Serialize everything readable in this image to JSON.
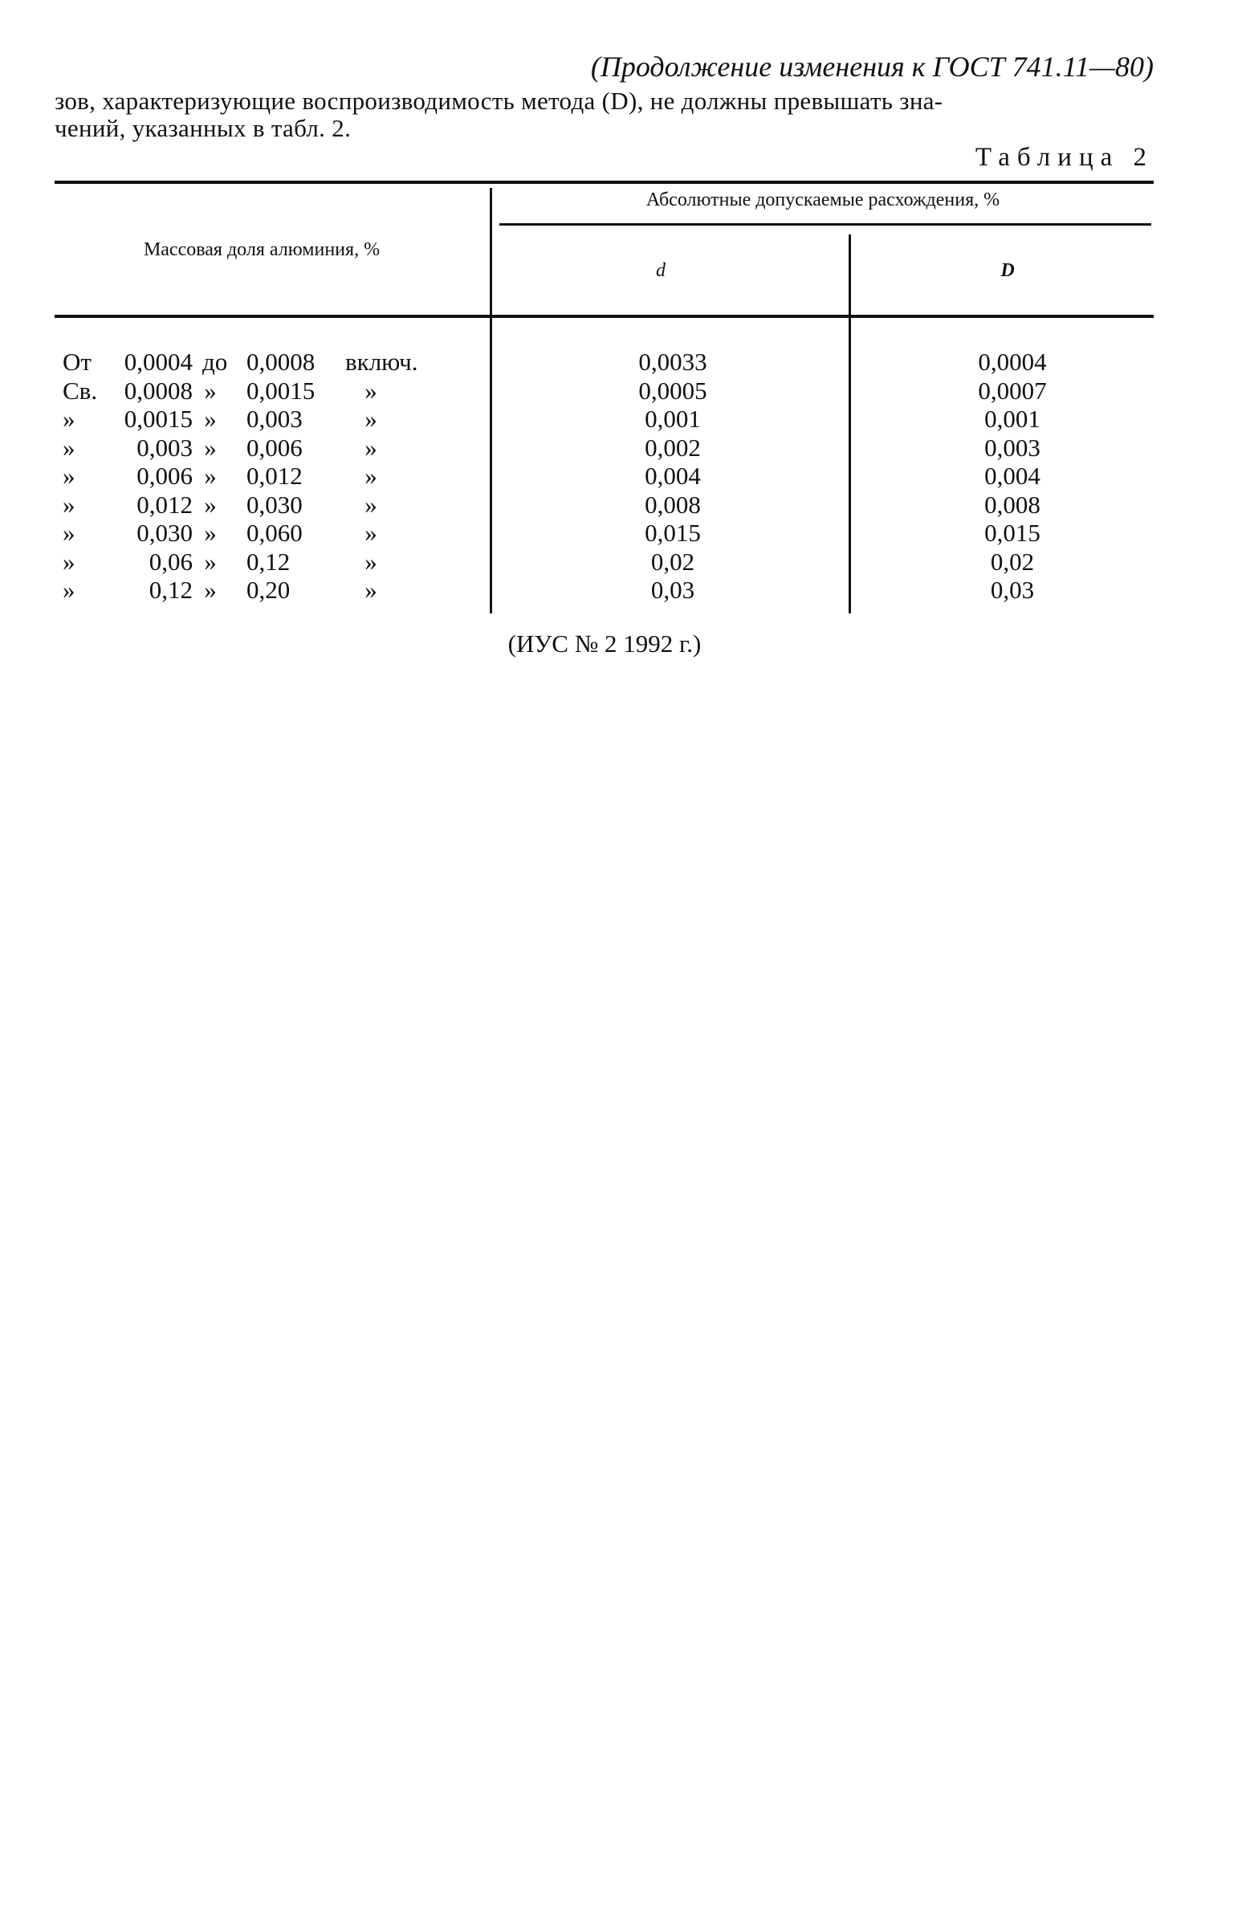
{
  "header": "(Продолжение изменения к ГОСТ 741.11—80)",
  "paragraph": [
    "зов, характеризующие воспроизводимость метода (D), не должны превышать зна-",
    "чений, указанных в табл. 2."
  ],
  "table_label": "Таблица 2",
  "table": {
    "col1_header": "Массовая доля алюминия, %",
    "group_header": "Абсолютные допускаемые расхождения, %",
    "col2_header": "d",
    "col3_header": "D",
    "rows": [
      {
        "prefix": "От",
        "from": "0,0004",
        "sep": "до",
        "to": "0,0008",
        "suffix": "включ.",
        "d": "0,0033",
        "D": "0,0004"
      },
      {
        "prefix": "Св.",
        "from": "0,0008",
        "sep": "»",
        "to": "0,0015",
        "suffix": "»",
        "d": "0,0005",
        "D": "0,0007"
      },
      {
        "prefix": "»",
        "from": "0,0015",
        "sep": "»",
        "to": "0,003",
        "suffix": "»",
        "d": "0,001",
        "D": "0,001"
      },
      {
        "prefix": "»",
        "from": "0,003",
        "sep": "»",
        "to": "0,006",
        "suffix": "»",
        "d": "0,002",
        "D": "0,003"
      },
      {
        "prefix": "»",
        "from": "0,006",
        "sep": "»",
        "to": "0,012",
        "suffix": "»",
        "d": "0,004",
        "D": "0,004"
      },
      {
        "prefix": "»",
        "from": "0,012",
        "sep": "»",
        "to": "0,030",
        "suffix": "»",
        "d": "0,008",
        "D": "0,008"
      },
      {
        "prefix": "»",
        "from": "0,030",
        "sep": "»",
        "to": "0,060",
        "suffix": "»",
        "d": "0,015",
        "D": "0,015"
      },
      {
        "prefix": "»",
        "from": "0,06",
        "sep": "»",
        "to": "0,12",
        "suffix": "»",
        "d": "0,02",
        "D": "0,02"
      },
      {
        "prefix": "»",
        "from": "0,12",
        "sep": "»",
        "to": "0,20",
        "suffix": "»",
        "d": "0,03",
        "D": "0,03"
      }
    ]
  },
  "footnote": "(ИУС № 2 1992 г.)"
}
